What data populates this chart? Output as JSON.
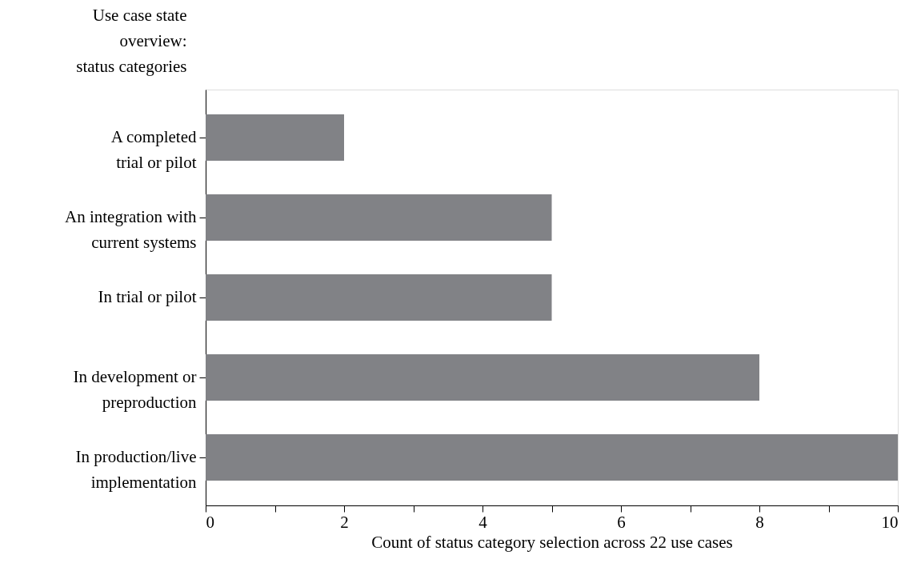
{
  "chart_data": {
    "type": "bar",
    "orientation": "horizontal",
    "ylabel": "Use case state\noverview:\nstatus categories",
    "xlabel": "Count of status category selection across 22 use cases",
    "categories": [
      "A completed\ntrial or pilot",
      "An integration with\ncurrent systems",
      "In trial or pilot",
      "In development or\npreproduction",
      "In production/live\nimplementation"
    ],
    "values": [
      2,
      5,
      5,
      8,
      10
    ],
    "color": "#818286",
    "xlim": [
      0,
      10
    ],
    "xticks": [
      0,
      {
        "value": 1,
        "label": null
      },
      2,
      {
        "value": 3,
        "label": null
      },
      4,
      {
        "value": 5,
        "label": null
      },
      6,
      {
        "value": 7,
        "label": null
      },
      8,
      {
        "value": 9,
        "label": null
      },
      10
    ],
    "grid": false
  }
}
